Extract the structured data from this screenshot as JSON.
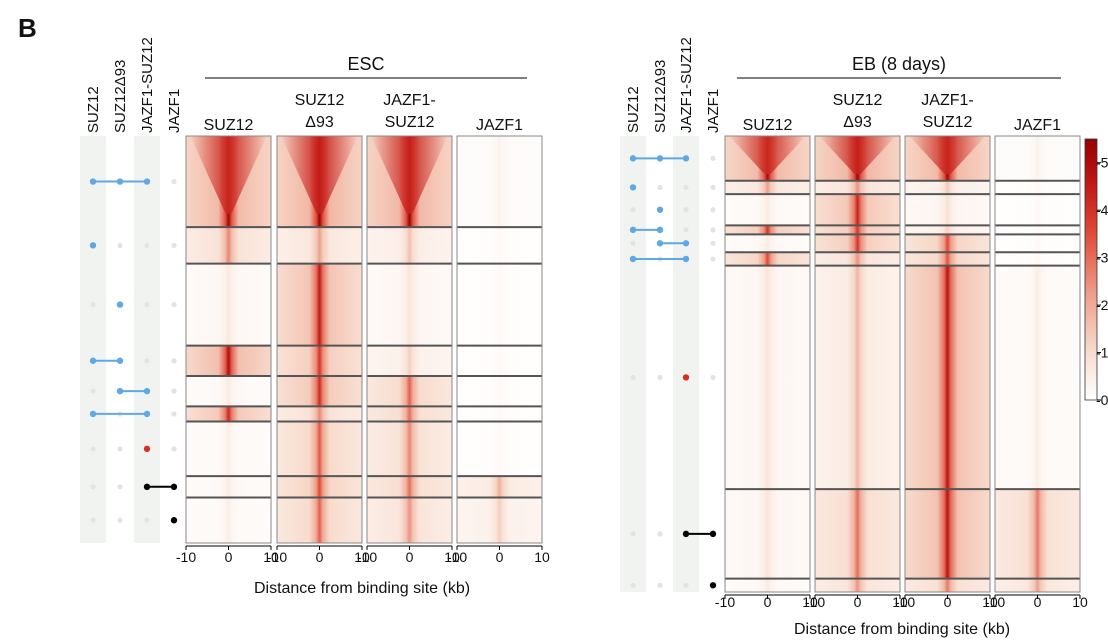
{
  "panel_label": "B",
  "chart_data": {
    "type": "heatmap",
    "xlabel": "Distance from binding site (kb)",
    "x_ticks": [
      -10,
      0,
      10
    ],
    "colorbar": {
      "ticks": [
        0,
        1,
        2,
        3,
        4,
        5
      ],
      "range": [
        0,
        5.5
      ],
      "low_color": "#ffffff",
      "high_color": "#9e0000"
    },
    "conditions": [
      "SUZ12",
      "SUZ12Δ93",
      "JAZF1-SUZ12",
      "JAZF1"
    ],
    "panels": [
      {
        "group": "ESC",
        "columns": [
          {
            "name": [
              "SUZ12"
            ]
          },
          {
            "name": [
              "SUZ12",
              "Δ93"
            ]
          },
          {
            "name": [
              "JAZF1-",
              "SUZ12"
            ]
          },
          {
            "name": [
              "JAZF1"
            ]
          }
        ],
        "clusters": [
          {
            "rows": 0.3,
            "combo": [
              1,
              1,
              1,
              0
            ],
            "dot_color": "blue",
            "signal": [
              5.3,
              5.5,
              5.4,
              0.4
            ]
          },
          {
            "rows": 0.12,
            "combo": [
              1,
              0,
              0,
              0
            ],
            "dot_color": "blue",
            "signal": [
              2.6,
              2.2,
              1.6,
              0.2
            ]
          },
          {
            "rows": 0.27,
            "combo": [
              0,
              1,
              0,
              0
            ],
            "dot_color": "blue",
            "signal": [
              0.7,
              4.6,
              0.8,
              0.2
            ]
          },
          {
            "rows": 0.1,
            "combo": [
              1,
              1,
              0,
              0
            ],
            "dot_color": "blue",
            "signal": [
              5.0,
              4.0,
              1.3,
              0.2
            ]
          },
          {
            "rows": 0.1,
            "combo": [
              0,
              1,
              1,
              0
            ],
            "dot_color": "blue",
            "signal": [
              0.6,
              4.2,
              3.2,
              0.2
            ]
          },
          {
            "rows": 0.05,
            "combo": [
              1,
              0,
              1,
              0
            ],
            "dot_color": "blue",
            "signal": [
              4.3,
              2.6,
              3.0,
              0.2
            ]
          },
          {
            "rows": 0.18,
            "combo": [
              0,
              0,
              1,
              0
            ],
            "dot_color": "red",
            "signal": [
              0.5,
              3.3,
              2.6,
              0.2
            ]
          },
          {
            "rows": 0.07,
            "combo": [
              0,
              0,
              1,
              1
            ],
            "dot_color": "black",
            "signal": [
              0.6,
              3.6,
              3.0,
              1.9
            ]
          },
          {
            "rows": 0.15,
            "combo": [
              0,
              0,
              0,
              1
            ],
            "dot_color": "black",
            "signal": [
              0.5,
              3.2,
              2.4,
              1.3
            ]
          }
        ]
      },
      {
        "group": "EB (8 days)",
        "columns": [
          {
            "name": [
              "SUZ12"
            ]
          },
          {
            "name": [
              "SUZ12",
              "Δ93"
            ]
          },
          {
            "name": [
              "JAZF1-",
              "SUZ12"
            ]
          },
          {
            "name": [
              "JAZF1"
            ]
          }
        ],
        "clusters": [
          {
            "rows": 0.1,
            "combo": [
              1,
              1,
              1,
              0
            ],
            "dot_color": "blue",
            "signal": [
              5.2,
              5.4,
              5.3,
              0.4
            ]
          },
          {
            "rows": 0.03,
            "combo": [
              1,
              0,
              0,
              0
            ],
            "dot_color": "blue",
            "signal": [
              2.2,
              2.4,
              1.4,
              0.2
            ]
          },
          {
            "rows": 0.07,
            "combo": [
              0,
              1,
              0,
              0
            ],
            "dot_color": "blue",
            "signal": [
              0.6,
              4.4,
              0.9,
              0.2
            ]
          },
          {
            "rows": 0.02,
            "combo": [
              1,
              1,
              0,
              0
            ],
            "dot_color": "blue",
            "signal": [
              4.0,
              4.0,
              1.2,
              0.2
            ]
          },
          {
            "rows": 0.04,
            "combo": [
              0,
              1,
              1,
              0
            ],
            "dot_color": "blue",
            "signal": [
              0.6,
              4.0,
              3.6,
              0.2
            ]
          },
          {
            "rows": 0.03,
            "combo": [
              1,
              0,
              1,
              0
            ],
            "dot_color": "blue",
            "signal": [
              3.6,
              2.4,
              3.4,
              0.2
            ]
          },
          {
            "rows": 0.5,
            "combo": [
              0,
              0,
              1,
              0
            ],
            "dot_color": "red",
            "signal": [
              0.8,
              1.8,
              4.8,
              0.5
            ]
          },
          {
            "rows": 0.2,
            "combo": [
              0,
              0,
              1,
              1
            ],
            "dot_color": "black",
            "signal": [
              0.8,
              3.0,
              4.8,
              2.8
            ]
          },
          {
            "rows": 0.03,
            "combo": [
              0,
              0,
              0,
              1
            ],
            "dot_color": "black",
            "signal": [
              0.6,
              2.4,
              2.8,
              2.2
            ]
          }
        ]
      }
    ]
  }
}
